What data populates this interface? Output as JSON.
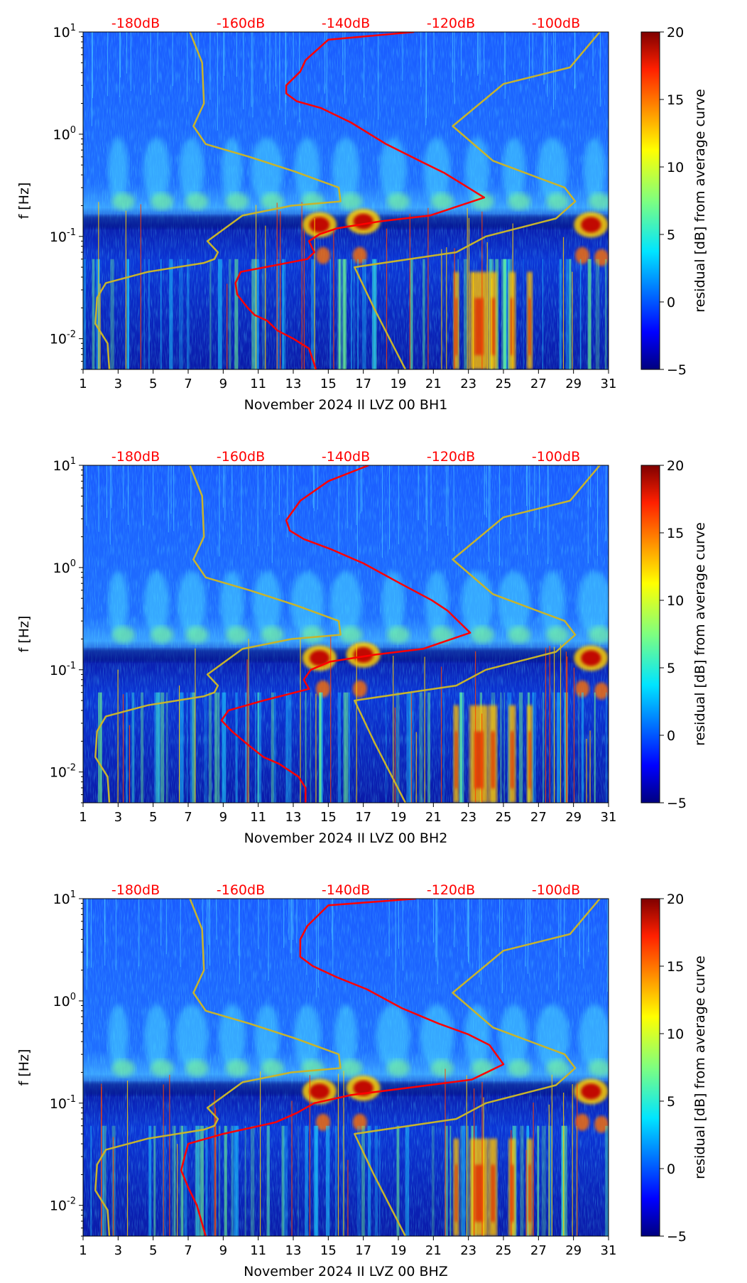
{
  "chart_data": [
    {
      "type": "heatmap",
      "title": "",
      "xlabel": "November 2024 II LVZ 00 BH1",
      "ylabel": "f [Hz]",
      "x_ticks": [
        "1",
        "3",
        "5",
        "7",
        "9",
        "11",
        "13",
        "15",
        "17",
        "19",
        "21",
        "23",
        "25",
        "27",
        "29",
        "31"
      ],
      "y_scale": "log",
      "y_ticks": [
        {
          "base": "10",
          "exp": "-2"
        },
        {
          "base": "10",
          "exp": "-1"
        },
        {
          "base": "10",
          "exp": "0"
        },
        {
          "base": "10",
          "exp": "1"
        }
      ],
      "xlim": [
        1,
        31
      ],
      "ylim": [
        0.005,
        10
      ],
      "db_ticks": [
        "-180dB",
        "-160dB",
        "-140dB",
        "-120dB",
        "-100dB"
      ],
      "db_color": "#ff0000",
      "colorbar": {
        "label": "residual [dB] from average curve",
        "ticks": [
          "20",
          "15",
          "10",
          "5",
          "0",
          "−5"
        ],
        "range": [
          -5,
          20
        ]
      },
      "series": [
        {
          "color": "#ff0000",
          "x": [
            19.9,
            15,
            13.7,
            13.4,
            12.6,
            12.6,
            13.2,
            14.6,
            16.3,
            18.3,
            20.4,
            21.6,
            22.6,
            23.9,
            20.8,
            17.9,
            15.5,
            14.5,
            13.9,
            14.2,
            13.8,
            10,
            9.7,
            9.8,
            10.4,
            10.8,
            11.5,
            12.1,
            13,
            13.9,
            14.3
          ],
          "y": [
            10,
            8.4,
            5.3,
            4.1,
            3,
            2.5,
            2.1,
            1.8,
            1.3,
            0.8,
            0.53,
            0.42,
            0.33,
            0.24,
            0.16,
            0.14,
            0.12,
            0.105,
            0.09,
            0.07,
            0.06,
            0.045,
            0.035,
            0.027,
            0.02,
            0.017,
            0.015,
            0.012,
            0.01,
            0.008,
            0.005
          ]
        },
        {
          "color": "#c8b42c",
          "x": [
            7.1,
            7.8,
            7.9,
            7.3,
            8,
            10.5,
            13.1,
            15.6,
            15.7,
            12.9,
            10.1,
            8.1,
            8.7,
            8.5,
            7.9,
            4.7,
            2.3,
            1.8,
            1.7,
            2.4,
            2.5
          ],
          "y": [
            10,
            5,
            2,
            1.2,
            0.8,
            0.6,
            0.43,
            0.3,
            0.22,
            0.2,
            0.16,
            0.09,
            0.07,
            0.06,
            0.055,
            0.045,
            0.035,
            0.025,
            0.014,
            0.009,
            0.005
          ]
        },
        {
          "color": "#c8b42c",
          "x": [
            30.5,
            28.8,
            25,
            22.1,
            24.4,
            28.5,
            29.1,
            28,
            24,
            22.3,
            16.5,
            17.6,
            19.4
          ],
          "y": [
            10,
            4.5,
            3.1,
            1.2,
            0.55,
            0.3,
            0.22,
            0.15,
            0.1,
            0.07,
            0.05,
            0.02,
            0.005
          ]
        }
      ]
    },
    {
      "type": "heatmap",
      "title": "",
      "xlabel": "November 2024 II LVZ 00 BH2",
      "ylabel": "f [Hz]",
      "x_ticks": [
        "1",
        "3",
        "5",
        "7",
        "9",
        "11",
        "13",
        "15",
        "17",
        "19",
        "21",
        "23",
        "25",
        "27",
        "29",
        "31"
      ],
      "y_scale": "log",
      "y_ticks": [
        {
          "base": "10",
          "exp": "-2"
        },
        {
          "base": "10",
          "exp": "-1"
        },
        {
          "base": "10",
          "exp": "0"
        },
        {
          "base": "10",
          "exp": "1"
        }
      ],
      "xlim": [
        1,
        31
      ],
      "ylim": [
        0.005,
        10
      ],
      "db_ticks": [
        "-180dB",
        "-160dB",
        "-140dB",
        "-120dB",
        "-100dB"
      ],
      "db_color": "#ff0000",
      "colorbar": {
        "label": "residual [dB] from average curve",
        "ticks": [
          "20",
          "15",
          "10",
          "5",
          "0",
          "−5"
        ],
        "range": [
          -5,
          20
        ]
      },
      "series": [
        {
          "color": "#ff0000",
          "x": [
            17.3,
            15,
            13.4,
            12.6,
            12.8,
            13.6,
            15.2,
            17,
            19.1,
            20.9,
            21.8,
            23.1,
            20.4,
            17.6,
            15.1,
            14,
            13.6,
            13.9,
            11.3,
            9.3,
            8.9,
            9.5,
            10.5,
            11.3,
            12.2,
            13.3,
            13.7,
            13.7
          ],
          "y": [
            10,
            7,
            4.5,
            2.9,
            2.3,
            1.9,
            1.5,
            1.1,
            0.7,
            0.48,
            0.38,
            0.23,
            0.16,
            0.14,
            0.12,
            0.1,
            0.08,
            0.065,
            0.05,
            0.04,
            0.032,
            0.025,
            0.018,
            0.014,
            0.012,
            0.009,
            0.007,
            0.005
          ]
        },
        {
          "color": "#c8b42c",
          "x": [
            7.1,
            7.8,
            7.9,
            7.3,
            8,
            10.5,
            13.1,
            15.6,
            15.7,
            12.9,
            10.1,
            8.1,
            8.7,
            8.5,
            7.9,
            4.7,
            2.3,
            1.8,
            1.7,
            2.4,
            2.5
          ],
          "y": [
            10,
            5,
            2,
            1.2,
            0.8,
            0.6,
            0.43,
            0.3,
            0.22,
            0.2,
            0.16,
            0.09,
            0.07,
            0.06,
            0.055,
            0.045,
            0.035,
            0.025,
            0.014,
            0.009,
            0.005
          ]
        },
        {
          "color": "#c8b42c",
          "x": [
            30.5,
            28.8,
            25,
            22.1,
            24.4,
            28.5,
            29.1,
            28,
            24,
            22.3,
            16.5,
            17.6,
            19.4
          ],
          "y": [
            10,
            4.5,
            3.1,
            1.2,
            0.55,
            0.3,
            0.22,
            0.15,
            0.1,
            0.07,
            0.05,
            0.02,
            0.005
          ]
        }
      ]
    },
    {
      "type": "heatmap",
      "title": "",
      "xlabel": "November 2024 II LVZ 00 BHZ",
      "ylabel": "f [Hz]",
      "x_ticks": [
        "1",
        "3",
        "5",
        "7",
        "9",
        "11",
        "13",
        "15",
        "17",
        "19",
        "21",
        "23",
        "25",
        "27",
        "29",
        "31"
      ],
      "y_scale": "log",
      "y_ticks": [
        {
          "base": "10",
          "exp": "-2"
        },
        {
          "base": "10",
          "exp": "-1"
        },
        {
          "base": "10",
          "exp": "0"
        },
        {
          "base": "10",
          "exp": "1"
        }
      ],
      "xlim": [
        1,
        31
      ],
      "ylim": [
        0.005,
        10
      ],
      "db_ticks": [
        "-180dB",
        "-160dB",
        "-140dB",
        "-120dB",
        "-100dB"
      ],
      "db_color": "#ff0000",
      "colorbar": {
        "label": "residual [dB] from average curve",
        "ticks": [
          "20",
          "15",
          "10",
          "5",
          "0",
          "−5"
        ],
        "range": [
          -5,
          20
        ]
      },
      "series": [
        {
          "color": "#ff0000",
          "x": [
            20,
            15,
            13.8,
            13.4,
            13.4,
            14.1,
            15.5,
            17.2,
            19.2,
            21.3,
            23,
            24.2,
            25,
            23.2,
            19.4,
            16.3,
            14.2,
            13.2,
            12,
            9,
            7,
            6.8,
            6.6,
            7,
            7.5,
            8
          ],
          "y": [
            10,
            8.6,
            5.4,
            4,
            2.7,
            2.2,
            1.7,
            1.3,
            0.85,
            0.6,
            0.47,
            0.37,
            0.24,
            0.17,
            0.14,
            0.12,
            0.1,
            0.08,
            0.065,
            0.05,
            0.04,
            0.03,
            0.022,
            0.015,
            0.01,
            0.005
          ]
        },
        {
          "color": "#c8b42c",
          "x": [
            7.1,
            7.8,
            7.9,
            7.3,
            8,
            10.5,
            13.1,
            15.6,
            15.7,
            12.9,
            10.1,
            8.1,
            8.7,
            8.5,
            7.9,
            4.7,
            2.3,
            1.8,
            1.7,
            2.4,
            2.5
          ],
          "y": [
            10,
            5,
            2,
            1.2,
            0.8,
            0.6,
            0.43,
            0.3,
            0.22,
            0.2,
            0.16,
            0.09,
            0.07,
            0.06,
            0.055,
            0.045,
            0.035,
            0.025,
            0.014,
            0.009,
            0.005
          ]
        },
        {
          "color": "#c8b42c",
          "x": [
            30.5,
            28.8,
            25,
            22.1,
            24.4,
            28.5,
            29.1,
            28,
            24,
            22.3,
            16.5,
            17.6,
            19.4
          ],
          "y": [
            10,
            4.5,
            3.1,
            1.2,
            0.55,
            0.3,
            0.22,
            0.15,
            0.1,
            0.07,
            0.05,
            0.02,
            0.005
          ]
        }
      ]
    }
  ]
}
